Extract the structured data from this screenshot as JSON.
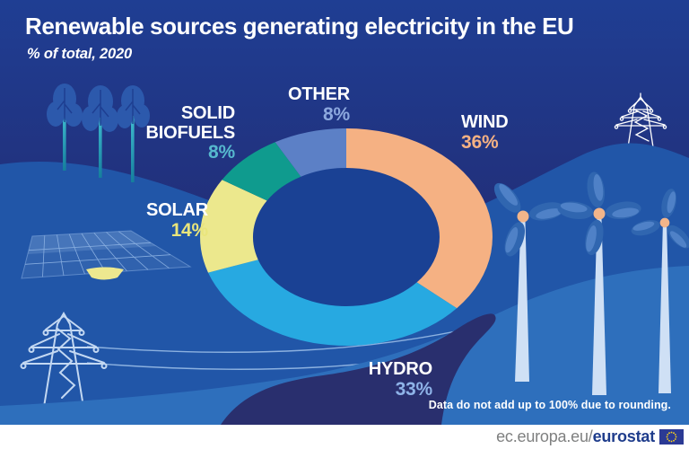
{
  "header": {
    "title": "Renewable sources generating electricity in the EU",
    "subtitle": "% of total, 2020"
  },
  "chart_data": {
    "type": "pie",
    "variant": "donut",
    "title": "Renewable sources generating electricity in the EU",
    "subtitle": "% of total, 2020",
    "unit": "% of total",
    "start_angle_deg": 0,
    "direction": "clockwise",
    "categories": [
      "WIND",
      "HYDRO",
      "SOLAR",
      "SOLID BIOFUELS",
      "OTHER"
    ],
    "values": [
      36,
      33,
      14,
      8,
      8
    ],
    "segments": [
      {
        "label": "WIND",
        "value": 36,
        "color": "#F5B183",
        "value_color": "#F5B183"
      },
      {
        "label": "HYDRO",
        "value": 33,
        "color": "#27A9E1",
        "value_color": "#8EB3E8"
      },
      {
        "label": "SOLAR",
        "value": 14,
        "color": "#ECE88D",
        "value_color": "#E9E57B"
      },
      {
        "label": "SOLID BIOFUELS",
        "value": 8,
        "color": "#0F9B8E",
        "value_color": "#56B8CE"
      },
      {
        "label": "OTHER",
        "value": 8,
        "color": "#5C80C6",
        "value_color": "#8CA8DE"
      }
    ],
    "hole_color": "#1A4194",
    "footnote": "Data do not add up to 100% due to rounding."
  },
  "footer": {
    "url_plain": "ec.europa.eu/",
    "url_bold": "eurostat"
  },
  "colors": {
    "background_top": "#1F3E93",
    "background_deep": "#222E78",
    "hill": "#2156A8",
    "bottom_wave": "#2E6FBC",
    "river_swoosh": "#292F6E",
    "tree_canopy": "#2C59AC",
    "turbine_blade": "#3066B0",
    "turbine_hub": "#F2B58A",
    "footer_background": "#FFFFFF"
  },
  "scene_icons": [
    "trees-icon",
    "solar-panel-icon",
    "boat-icon",
    "power-pylon-icon",
    "power-lines-icon",
    "wind-turbine-icon",
    "eu-flag-icon"
  ]
}
